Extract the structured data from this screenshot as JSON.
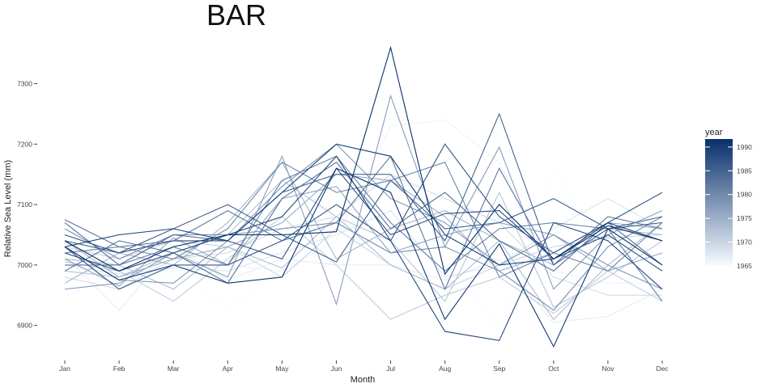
{
  "chart_data": {
    "type": "line",
    "title": "BAR",
    "xlabel": "Month",
    "ylabel": "Relative Sea Level (mm)",
    "categories": [
      "Jan",
      "Feb",
      "Mar",
      "Apr",
      "May",
      "Jun",
      "Jul",
      "Aug",
      "Sep",
      "Oct",
      "Nov",
      "Dec"
    ],
    "ylim": [
      6850,
      7385
    ],
    "yticks": [
      6900,
      7000,
      7100,
      7200,
      7300
    ],
    "grid": false,
    "legend": {
      "title": "year",
      "position": "right",
      "min": 1965,
      "max": 1991,
      "ticks": [
        1965,
        1970,
        1975,
        1980,
        1985,
        1990
      ],
      "low_color": "#f7fbff",
      "high_color": "#08306b"
    },
    "series": [
      {
        "year": 1965,
        "values": [
          6948,
          6990,
          6985,
          6930,
          6990,
          7030,
          7045,
          7040,
          6885,
          7160,
          7010,
          7040
        ]
      },
      {
        "year": 1966,
        "values": [
          6975,
          6995,
          6990,
          7000,
          6990,
          7040,
          7230,
          7240,
          7170,
          6990,
          6970,
          6970
        ]
      },
      {
        "year": 1967,
        "values": [
          7015,
          6925,
          7030,
          6975,
          7010,
          7000,
          7000,
          6975,
          7010,
          6905,
          6915,
          6960
        ]
      },
      {
        "year": 1968,
        "values": [
          7000,
          6985,
          6995,
          6990,
          7020,
          7050,
          7090,
          6980,
          7000,
          7060,
          7110,
          7060
        ]
      },
      {
        "year": 1969,
        "values": [
          6980,
          6960,
          7010,
          7020,
          7060,
          7080,
          7150,
          7110,
          7070,
          6980,
          6950,
          6950
        ]
      },
      {
        "year": 1970,
        "values": [
          7030,
          7010,
          7040,
          7030,
          6980,
          7060,
          7000,
          6960,
          7000,
          7030,
          7045,
          7050
        ]
      },
      {
        "year": 1971,
        "values": [
          7005,
          6990,
          6940,
          7010,
          7080,
          7000,
          6910,
          6950,
          6980,
          6920,
          6990,
          6940
        ]
      },
      {
        "year": 1972,
        "values": [
          6990,
          6980,
          7020,
          7050,
          7140,
          7080,
          7040,
          6940,
          7120,
          6930,
          6980,
          7040
        ]
      },
      {
        "year": 1973,
        "values": [
          7010,
          7000,
          6960,
          7030,
          6995,
          7080,
          7000,
          6960,
          7040,
          6910,
          7000,
          7070
        ]
      },
      {
        "year": 1974,
        "values": [
          6970,
          7020,
          7000,
          7070,
          7170,
          7010,
          7060,
          7090,
          7040,
          7000,
          7060,
          7050
        ]
      },
      {
        "year": 1975,
        "values": [
          7040,
          6980,
          7010,
          7030,
          7070,
          7150,
          7140,
          7080,
          6990,
          7020,
          7070,
          7060
        ]
      },
      {
        "year": 1976,
        "values": [
          7010,
          6965,
          7045,
          7000,
          7110,
          7130,
          7020,
          7050,
          7070,
          7050,
          6990,
          7020
        ]
      },
      {
        "year": 1977,
        "values": [
          6960,
          6970,
          7020,
          6980,
          7180,
          6935,
          7280,
          7030,
          7195,
          6960,
          7050,
          7090
        ]
      },
      {
        "year": 1978,
        "values": [
          7030,
          6975,
          6970,
          7040,
          7130,
          7200,
          7110,
          7070,
          7000,
          7050,
          7000,
          6960
        ]
      },
      {
        "year": 1979,
        "values": [
          7060,
          7010,
          7050,
          7050,
          7060,
          7070,
          7020,
          7030,
          6990,
          6925,
          7030,
          7080
        ]
      },
      {
        "year": 1980,
        "values": [
          7020,
          7030,
          7010,
          7060,
          7170,
          7120,
          7140,
          7170,
          6980,
          7020,
          6990,
          7070
        ]
      },
      {
        "year": 1981,
        "values": [
          7000,
          7000,
          7030,
          7000,
          7140,
          7180,
          7070,
          6990,
          7060,
          7070,
          7060,
          6940
        ]
      },
      {
        "year": 1982,
        "values": [
          7075,
          7030,
          7040,
          7090,
          7040,
          7070,
          7180,
          6960,
          7160,
          7000,
          7080,
          7060
        ]
      },
      {
        "year": 1983,
        "values": [
          6990,
          7040,
          7020,
          6970,
          7110,
          7170,
          7060,
          7120,
          7040,
          6990,
          7070,
          7000
        ]
      },
      {
        "year": 1984,
        "values": [
          7070,
          7000,
          7050,
          7040,
          7120,
          7150,
          7150,
          7040,
          7250,
          7000,
          7060,
          7080
        ]
      },
      {
        "year": 1985,
        "values": [
          7040,
          7020,
          7060,
          7100,
          7050,
          7005,
          7140,
          7060,
          7070,
          7110,
          7060,
          7070
        ]
      },
      {
        "year": 1986,
        "values": [
          7030,
          6960,
          7000,
          7000,
          7040,
          7100,
          7040,
          7200,
          7080,
          7020,
          7070,
          7120
        ]
      },
      {
        "year": 1987,
        "values": [
          7050,
          7020,
          7040,
          7040,
          7010,
          7160,
          7050,
          7085,
          7090,
          7010,
          7050,
          6990
        ]
      },
      {
        "year": 1988,
        "values": [
          7020,
          6990,
          7020,
          7050,
          7080,
          7180,
          7040,
          6890,
          6875,
          7070,
          7040,
          6960
        ]
      },
      {
        "year": 1989,
        "values": [
          7030,
          7050,
          7060,
          7040,
          7120,
          7200,
          7180,
          7050,
          7000,
          7010,
          7070,
          7040
        ]
      },
      {
        "year": 1990,
        "values": [
          7030,
          6975,
          7000,
          6970,
          6980,
          7160,
          7120,
          6910,
          7035,
          6865,
          7060,
          7000
        ]
      },
      {
        "year": 1991,
        "values": [
          7040,
          6990,
          7030,
          7050,
          7050,
          7055,
          7360,
          6985,
          7100,
          7010,
          7065,
          7040
        ]
      }
    ]
  }
}
